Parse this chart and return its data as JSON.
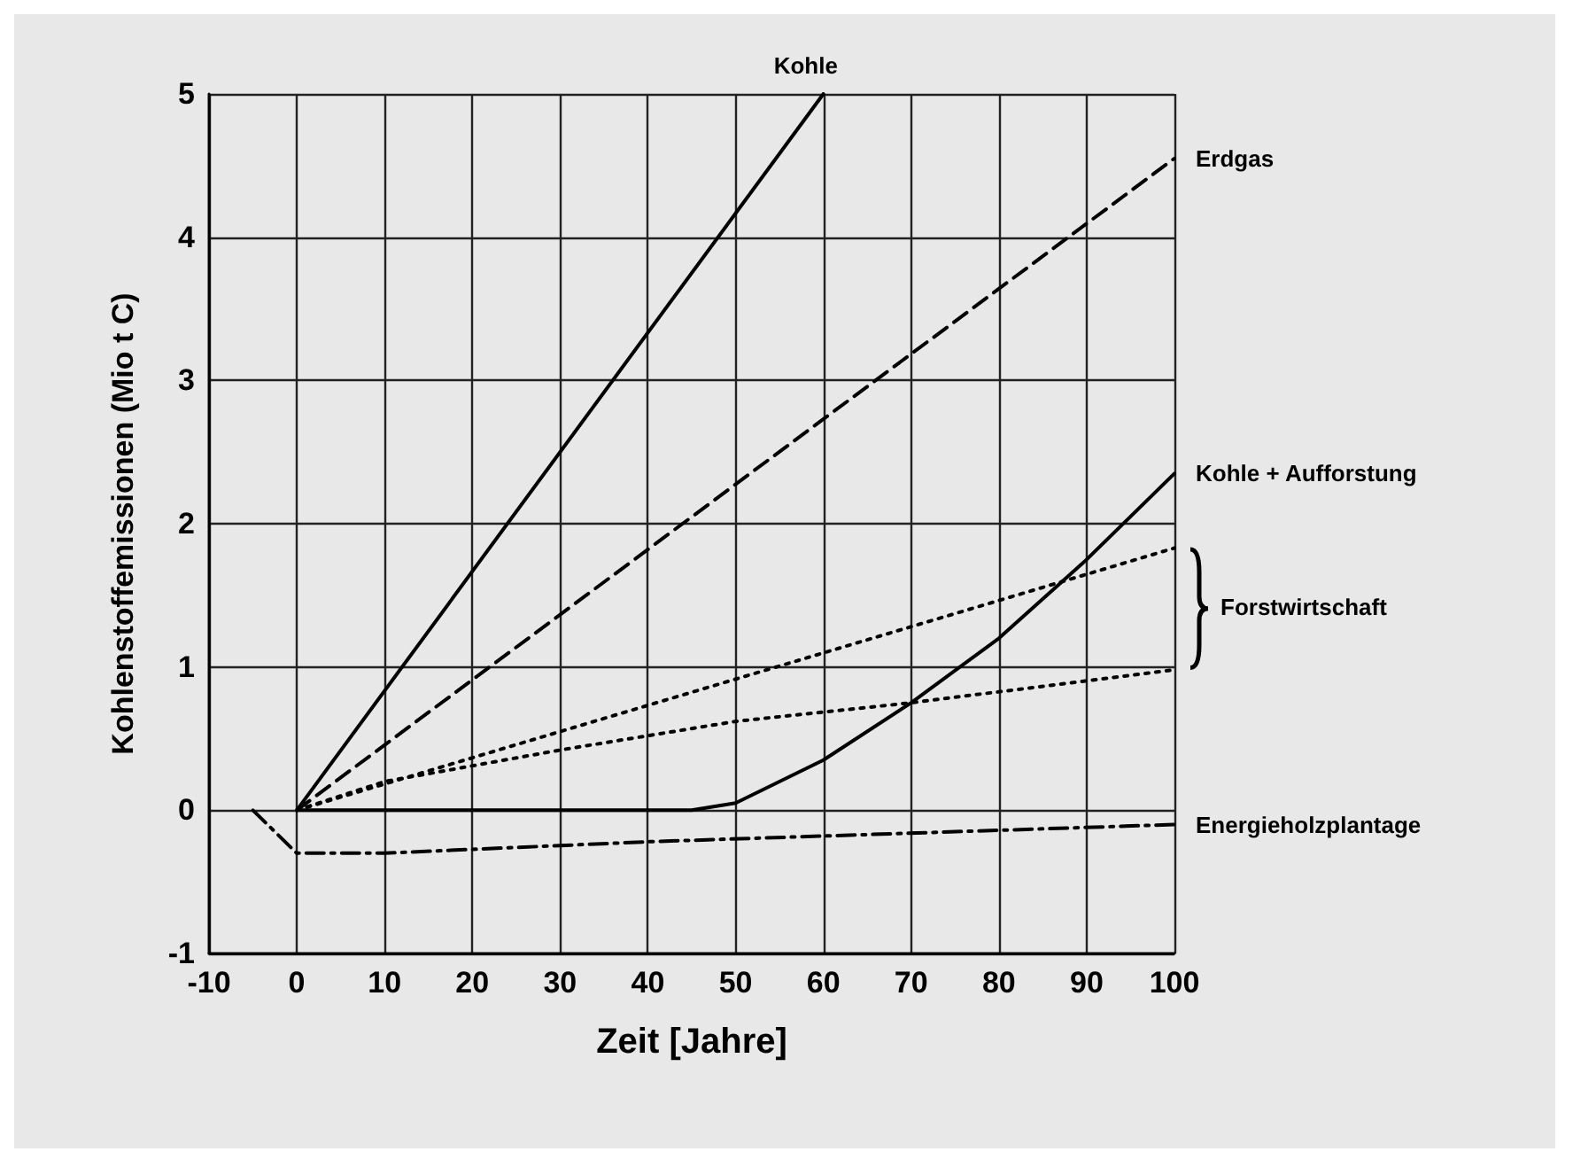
{
  "chart_data": {
    "type": "line",
    "xlabel": "Zeit [Jahre]",
    "ylabel": "Kohlenstoffemissionen (Mio t C)",
    "xlim": [
      -10,
      100
    ],
    "xticks": [
      -10,
      0,
      10,
      20,
      30,
      40,
      50,
      60,
      70,
      80,
      90,
      100
    ],
    "ylim": [
      -1,
      5
    ],
    "yticks": [
      -1,
      0,
      1,
      2,
      3,
      4,
      5
    ],
    "grid": true,
    "legend": false,
    "marker": "none",
    "series": [
      {
        "name": "Kohle",
        "color": "#000000",
        "line_style": "solid",
        "x": [
          0,
          60
        ],
        "values": [
          0,
          5
        ]
      },
      {
        "name": "Erdgas",
        "color": "#000000",
        "line_style": "dashed",
        "x": [
          0,
          100
        ],
        "values": [
          0,
          4.55
        ]
      },
      {
        "color": "#000000",
        "line_style": "dotted",
        "x": [
          0,
          100
        ],
        "values": [
          0,
          1.83
        ]
      },
      {
        "color": "#000000",
        "line_style": "dotted",
        "x": [
          0,
          10,
          30,
          50,
          70,
          100
        ],
        "values": [
          0,
          0.2,
          0.42,
          0.62,
          0.75,
          0.98
        ]
      },
      {
        "name": "Kohle + Aufforstung",
        "color": "#000000",
        "line_style": "solid",
        "x": [
          0,
          45,
          50,
          60,
          70,
          80,
          90,
          100
        ],
        "values": [
          0,
          0,
          0.05,
          0.35,
          0.75,
          1.2,
          1.75,
          2.35
        ]
      },
      {
        "name": "Energieholzplantage",
        "color": "#000000",
        "line_style": "dashdot",
        "x": [
          -5,
          0,
          10,
          40,
          60,
          100
        ],
        "values": [
          0,
          -0.3,
          -0.3,
          -0.22,
          -0.18,
          -0.1
        ]
      }
    ],
    "annotations": [
      "Forstwirtschaft"
    ]
  }
}
